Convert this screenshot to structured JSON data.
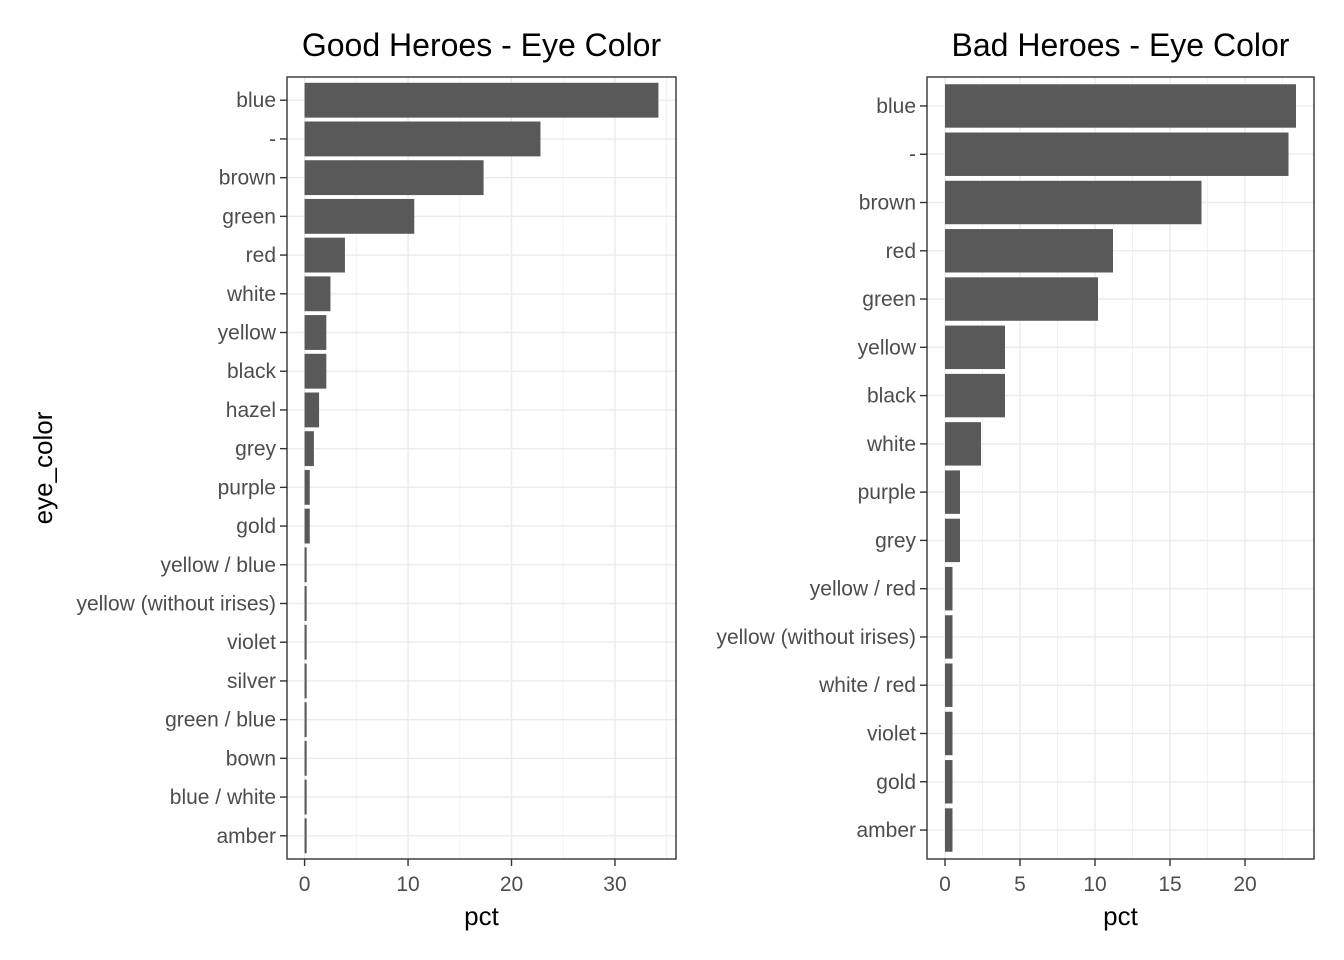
{
  "chart_data": [
    {
      "type": "bar",
      "orientation": "horizontal",
      "title": "Good Heroes - Eye Color",
      "xlabel": "pct",
      "ylabel": "eye_color",
      "categories": [
        "blue",
        "-",
        "brown",
        "green",
        "red",
        "white",
        "yellow",
        "black",
        "hazel",
        "grey",
        "purple",
        "gold",
        "yellow / blue",
        "yellow (without irises)",
        "violet",
        "silver",
        "green / blue",
        "bown",
        "blue / white",
        "amber"
      ],
      "values": [
        34.2,
        22.8,
        17.3,
        10.6,
        3.9,
        2.5,
        2.1,
        2.1,
        1.4,
        0.9,
        0.5,
        0.5,
        0.2,
        0.2,
        0.2,
        0.2,
        0.2,
        0.2,
        0.2,
        0.2
      ],
      "xlim": [
        -1.7,
        35.9
      ],
      "xticks": [
        0,
        10,
        20,
        30
      ],
      "grid": true,
      "bar_color": "#595959"
    },
    {
      "type": "bar",
      "orientation": "horizontal",
      "title": "Bad Heroes - Eye Color",
      "xlabel": "pct",
      "ylabel": "",
      "categories": [
        "blue",
        "-",
        "brown",
        "red",
        "green",
        "yellow",
        "black",
        "white",
        "purple",
        "grey",
        "yellow / red",
        "yellow (without irises)",
        "white / red",
        "violet",
        "gold",
        "amber"
      ],
      "values": [
        23.4,
        22.9,
        17.1,
        11.2,
        10.2,
        4.0,
        4.0,
        2.4,
        1.0,
        1.0,
        0.5,
        0.5,
        0.5,
        0.5,
        0.5,
        0.5
      ],
      "xlim": [
        -1.2,
        24.6
      ],
      "xticks": [
        0,
        5,
        10,
        15,
        20
      ],
      "grid": true,
      "bar_color": "#595959"
    }
  ]
}
